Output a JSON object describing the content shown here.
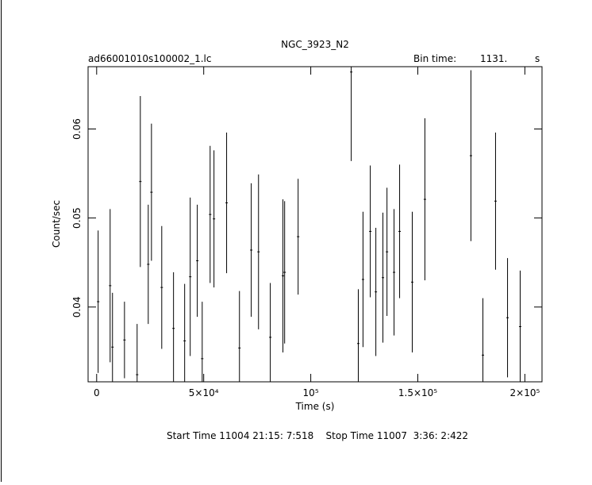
{
  "chart_data": {
    "type": "errorbar",
    "title": "NGC_3923_N2",
    "file_label": "ad66001010s100002_1.lc",
    "bin_time_label": "Bin time:",
    "bin_time_value": "1131.",
    "bin_time_unit": "s",
    "x_label": "Time (s)",
    "y_label": "Count/sec",
    "footer": "Start Time 11004 21:15: 7:518    Stop Time 11007  3:36: 2:422",
    "color": "#000000",
    "xlim": [
      -4000,
      208000
    ],
    "ylim": [
      0.0316,
      0.067
    ],
    "xticks": [
      {
        "value": 0,
        "label": "0"
      },
      {
        "value": 50000,
        "label": "5×10⁴"
      },
      {
        "value": 100000,
        "label": "10⁵"
      },
      {
        "value": 150000,
        "label": "1.5×10⁵"
      },
      {
        "value": 200000,
        "label": "2×10⁵"
      }
    ],
    "yticks": [
      0.04,
      0.05,
      0.06
    ],
    "x": [
      700,
      6300,
      7400,
      13000,
      18900,
      20400,
      24100,
      25600,
      30400,
      35900,
      41100,
      43700,
      47000,
      49300,
      53000,
      54800,
      60700,
      66700,
      72200,
      75600,
      81100,
      87000,
      87800,
      94100,
      118900,
      122200,
      124400,
      127800,
      130400,
      133700,
      135600,
      138900,
      141500,
      147400,
      153300,
      174800,
      180400,
      186300,
      191900,
      197800
    ],
    "values": [
      0.0406,
      0.0424,
      0.0355,
      0.0363,
      0.0324,
      0.0541,
      0.0448,
      0.0529,
      0.0422,
      0.0376,
      0.0362,
      0.0434,
      0.0452,
      0.0342,
      0.0504,
      0.0499,
      0.0517,
      0.0354,
      0.0464,
      0.0462,
      0.0366,
      0.0435,
      0.0439,
      0.0479,
      0.0664,
      0.0359,
      0.0431,
      0.0485,
      0.0417,
      0.0433,
      0.0462,
      0.0439,
      0.0485,
      0.0428,
      0.0521,
      0.057,
      0.0346,
      0.0519,
      0.0388,
      0.0378
    ],
    "errors": [
      0.008,
      0.0086,
      0.0061,
      0.0043,
      0.0057,
      0.0096,
      0.0067,
      0.0077,
      0.0069,
      0.0063,
      0.0064,
      0.0089,
      0.0063,
      0.0064,
      0.0077,
      0.0077,
      0.0079,
      0.0064,
      0.0075,
      0.0087,
      0.0061,
      0.0086,
      0.008,
      0.0065,
      0.01,
      0.0061,
      0.0076,
      0.0074,
      0.0072,
      0.0073,
      0.0072,
      0.0071,
      0.0075,
      0.0079,
      0.0091,
      0.0096,
      0.0064,
      0.0077,
      0.0067,
      0.0063
    ]
  }
}
